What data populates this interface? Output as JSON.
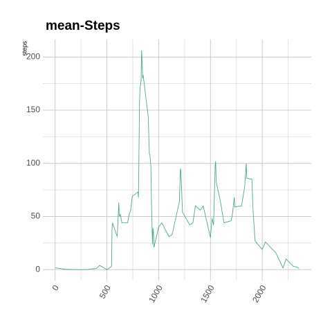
{
  "chart_data": {
    "type": "line",
    "title": "mean-Steps",
    "y_label": "steps",
    "x": [
      0,
      100,
      200,
      300,
      400,
      430,
      500,
      530,
      545,
      550,
      555,
      600,
      615,
      620,
      630,
      645,
      700,
      715,
      730,
      745,
      800,
      805,
      815,
      820,
      830,
      835,
      840,
      845,
      850,
      900,
      905,
      910,
      915,
      920,
      925,
      930,
      935,
      940,
      945,
      950,
      955,
      1000,
      1030,
      1100,
      1130,
      1200,
      1210,
      1215,
      1230,
      1300,
      1330,
      1355,
      1400,
      1430,
      1500,
      1515,
      1530,
      1545,
      1550,
      1555,
      1600,
      1630,
      1700,
      1710,
      1730,
      1735,
      1800,
      1830,
      1845,
      1850,
      1900,
      1910,
      1930,
      2000,
      2030,
      2100,
      2130,
      2200,
      2230,
      2300,
      2330,
      2355
    ],
    "series": [
      {
        "color": "#4fa88a",
        "values": [
          1.7,
          0.3,
          0,
          0,
          1.2,
          4,
          0,
          2.1,
          3,
          39,
          44,
          31,
          63,
          50,
          52,
          44,
          44,
          52,
          56,
          69,
          73,
          68,
          157,
          171,
          177,
          206.2,
          196,
          180,
          183,
          143,
          124,
          109,
          108,
          103,
          96,
          66,
          45,
          24,
          39,
          35,
          21,
          40,
          44,
          31,
          33,
          64,
          95,
          92,
          54,
          42,
          44,
          60,
          56,
          60,
          30,
          48,
          42,
          98,
          102,
          83,
          62,
          44,
          46,
          51,
          68,
          59,
          60,
          78,
          100,
          86,
          85,
          58,
          27,
          19,
          26,
          19,
          16,
          1.6,
          10,
          3,
          2.6,
          1.1
        ]
      }
    ],
    "xlim": [
      -117.75,
      2472.75
    ],
    "ylim": [
      -10.3,
      216.5
    ],
    "xticks": [
      0,
      500,
      1000,
      1500,
      2000
    ],
    "yticks": [
      0,
      50,
      100,
      150,
      200
    ],
    "minor_xticks": [
      250,
      750,
      1250,
      1750,
      2250
    ],
    "minor_yticks": [
      25,
      75,
      125,
      175
    ],
    "grid": true
  }
}
